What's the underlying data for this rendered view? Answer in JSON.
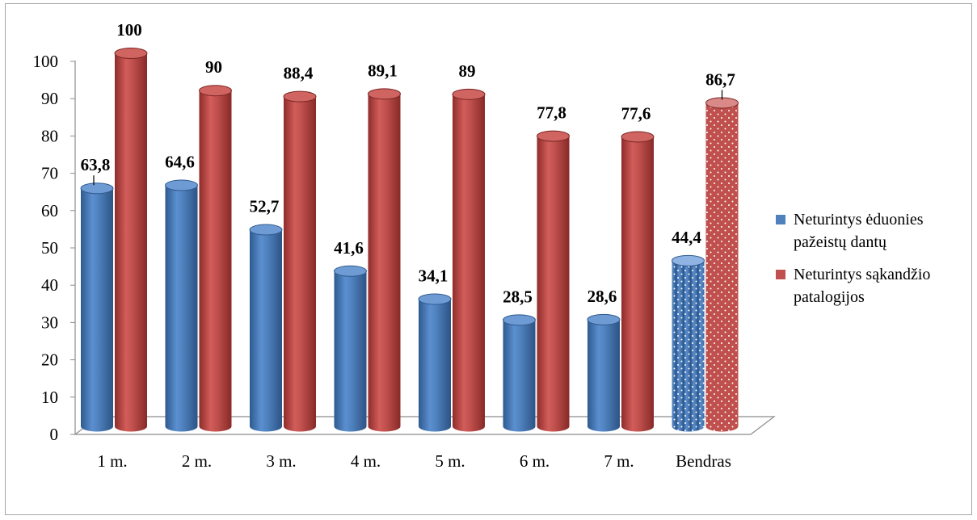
{
  "chart_data": {
    "type": "bar",
    "categories": [
      "1 m.",
      "2 m.",
      "3 m.",
      "4 m.",
      "5 m.",
      "6 m.",
      "7 m.",
      "Bendras"
    ],
    "series": [
      {
        "name": "Neturintys ėduonies pažeistų dantų",
        "values": [
          63.8,
          64.6,
          52.7,
          41.6,
          34.1,
          28.5,
          28.6,
          44.4
        ],
        "color": "#4f81bd"
      },
      {
        "name": "Neturintys sąkandžio patalogijos",
        "values": [
          100,
          90,
          88.4,
          89.1,
          89,
          77.8,
          77.6,
          86.7
        ],
        "color": "#c0504d"
      }
    ],
    "data_labels": [
      [
        "63,8",
        "64,6",
        "52,7",
        "41,6",
        "34,1",
        "28,5",
        "28,6",
        "44,4"
      ],
      [
        "100",
        "90",
        "88,4",
        "89,1",
        "89",
        "77,8",
        "77,6",
        "86,7"
      ]
    ],
    "yticks": [
      "0",
      "10",
      "20",
      "30",
      "40",
      "50",
      "60",
      "70",
      "80",
      "90",
      "100"
    ],
    "ylim": [
      0,
      100
    ],
    "legend": "right",
    "grid": false,
    "style": "3d-cylinder"
  }
}
